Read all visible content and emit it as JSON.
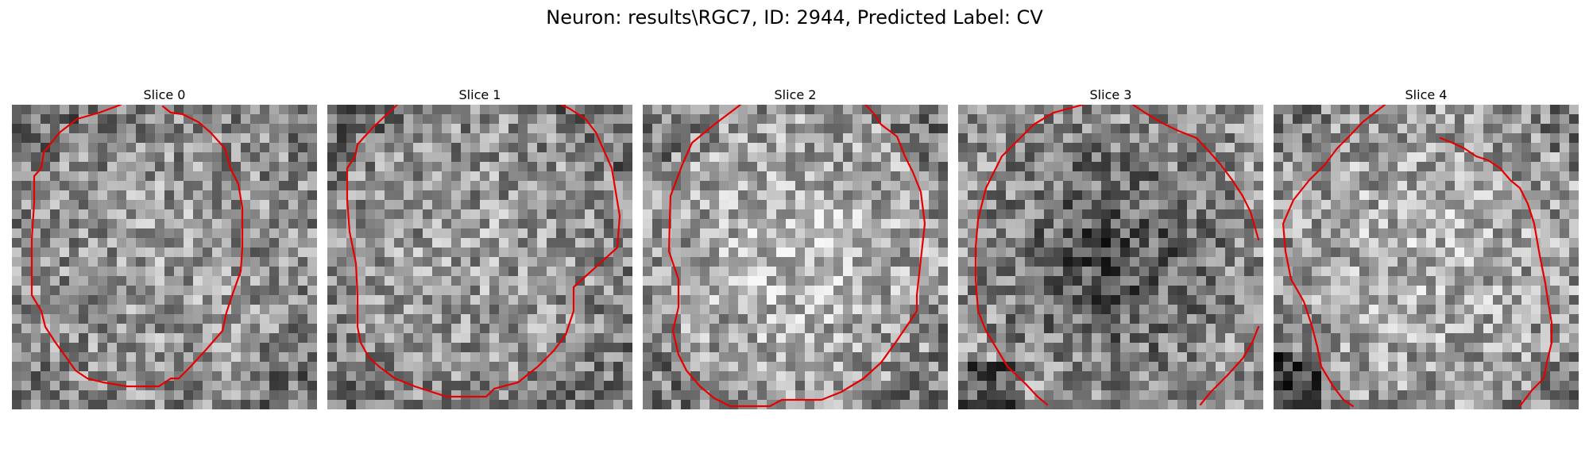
{
  "figure": {
    "suptitle": "Neuron: results\\RGC7, ID: 2944, Predicted Label: CV",
    "contour_color": "#e60000"
  },
  "panels": [
    {
      "title": "Slice 0"
    },
    {
      "title": "Slice 1"
    },
    {
      "title": "Slice 2"
    },
    {
      "title": "Slice 3"
    },
    {
      "title": "Slice 4"
    }
  ]
}
